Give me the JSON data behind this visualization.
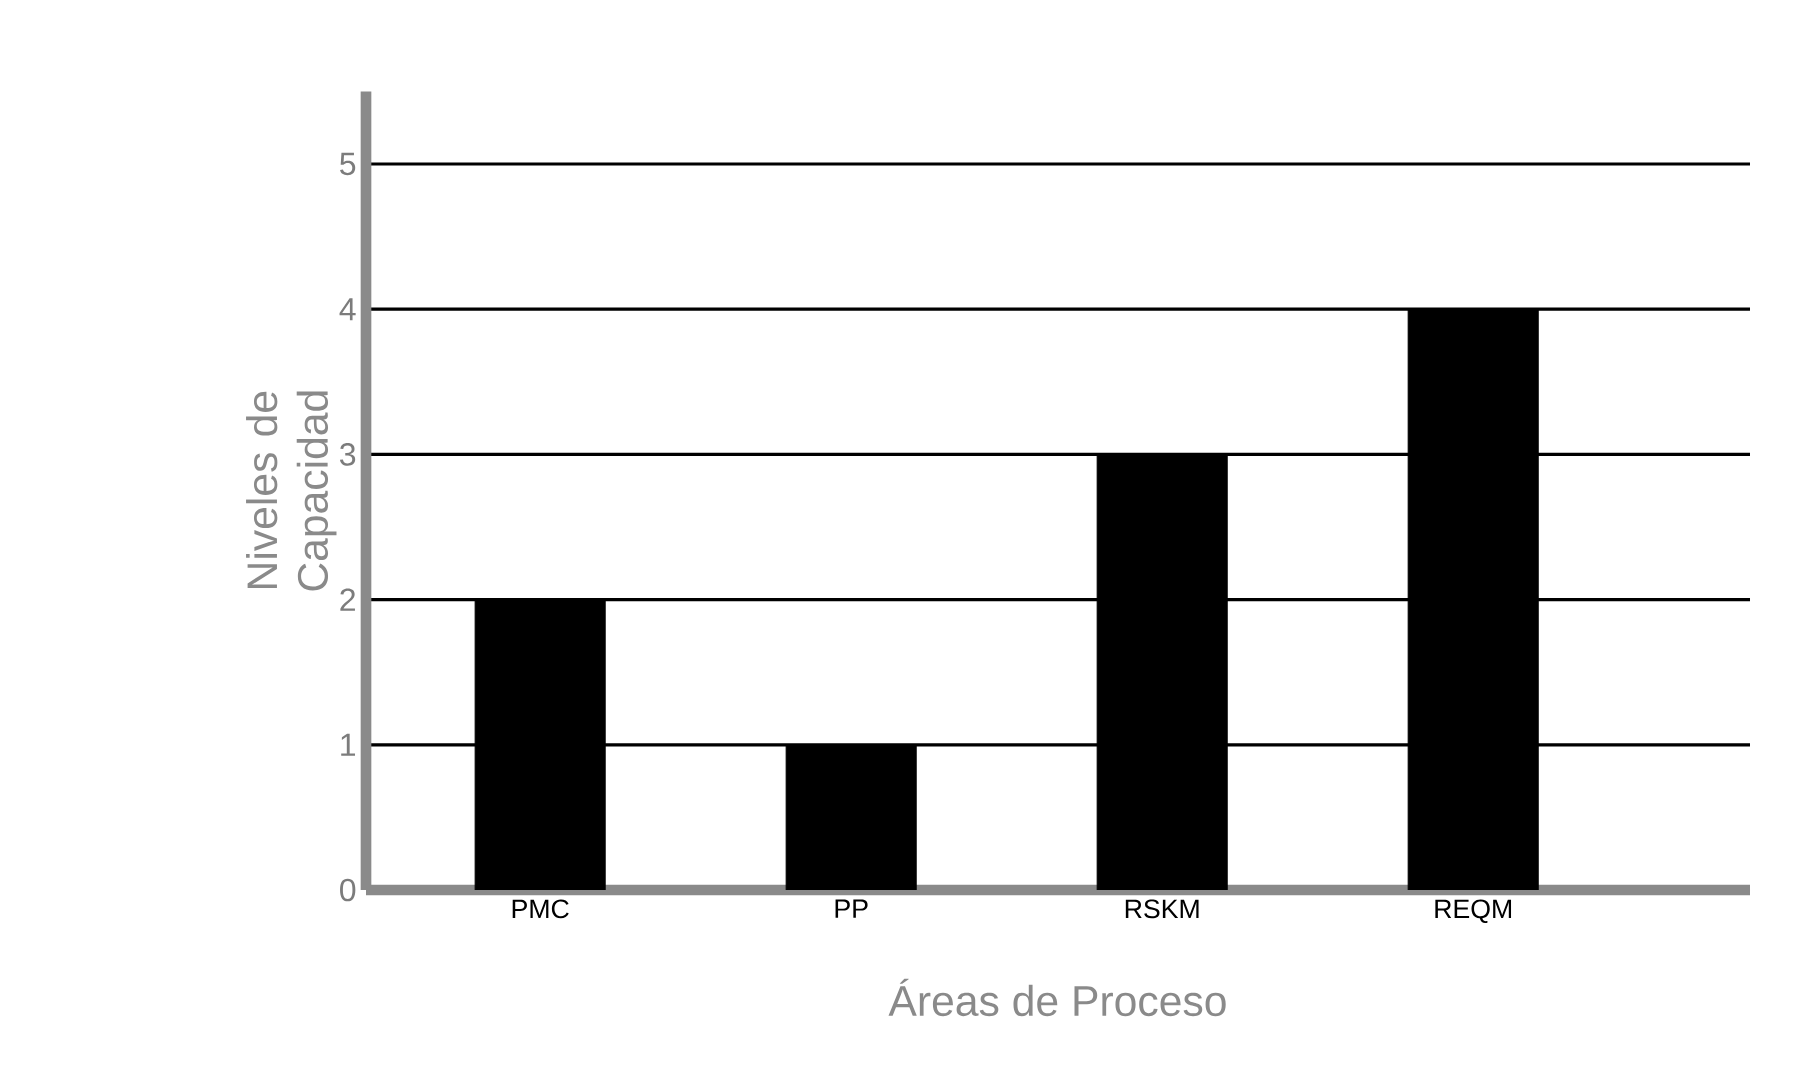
{
  "chart_data": {
    "type": "bar",
    "xlabel": "Áreas de Proceso",
    "ylabel": "Niveles de Capacidad",
    "categories": [
      "PMC",
      "PP",
      "RSKM",
      "REQM"
    ],
    "values": [
      2,
      1,
      3,
      4
    ],
    "color": "#000000",
    "ylim": [
      0,
      5.5
    ],
    "yticks": [
      0,
      1,
      2,
      3,
      4,
      5
    ],
    "grid": "y"
  }
}
